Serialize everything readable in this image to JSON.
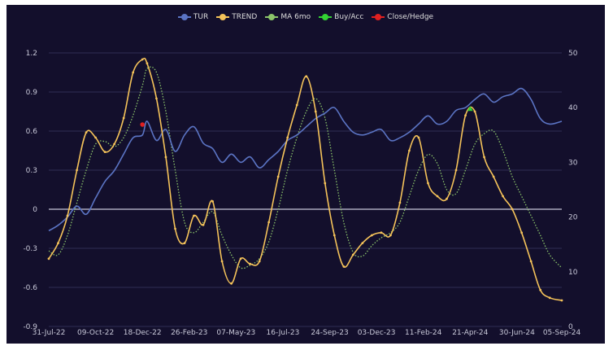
{
  "chart_data": {
    "type": "line",
    "title": "",
    "xlabel": "",
    "ylabel": "",
    "legend_position": "top-center",
    "grid": true,
    "y_left": {
      "range": [
        -0.9,
        1.2
      ],
      "ticks": [
        -0.9,
        -0.6,
        -0.3,
        0,
        0.3,
        0.6,
        0.9,
        1.2
      ],
      "tick_labels": [
        "-0.9",
        "-0.6",
        "-0.3",
        "0",
        "0.3",
        "0.6",
        "0.9",
        "1.2"
      ]
    },
    "y_right": {
      "range": [
        0,
        50
      ],
      "ticks": [
        0,
        10,
        20,
        30,
        40,
        50
      ],
      "tick_labels": [
        "0",
        "10",
        "20",
        "30",
        "40",
        "50"
      ]
    },
    "x_range": [
      "2022-07-31",
      "2024-09-05"
    ],
    "x_tick_labels": [
      {
        "date": "2022-07-31",
        "label": "31-Jul-22"
      },
      {
        "date": "2022-10-09",
        "label": "09-Oct-22"
      },
      {
        "date": "2022-12-18",
        "label": "18-Dec-22"
      },
      {
        "date": "2023-02-26",
        "label": "26-Feb-23"
      },
      {
        "date": "2023-05-07",
        "label": "07-May-23"
      },
      {
        "date": "2023-07-16",
        "label": "16-Jul-23"
      },
      {
        "date": "2023-09-24",
        "label": "24-Sep-23"
      },
      {
        "date": "2023-12-03",
        "label": "03-Dec-23"
      },
      {
        "date": "2024-02-11",
        "label": "11-Feb-24"
      },
      {
        "date": "2024-04-21",
        "label": "21-Apr-24"
      },
      {
        "date": "2024-06-30",
        "label": "30-Jun-24"
      },
      {
        "date": "2024-09-05",
        "label": "05-Sep-24"
      }
    ],
    "series": [
      {
        "name": "TUR",
        "axis": "right",
        "color": "#5b74c4",
        "style": "solid",
        "points": [
          [
            "2022-07-31",
            17.5
          ],
          [
            "2022-08-14",
            18.5
          ],
          [
            "2022-08-28",
            20.0
          ],
          [
            "2022-09-11",
            22.0
          ],
          [
            "2022-09-25",
            20.5
          ],
          [
            "2022-10-09",
            23.5
          ],
          [
            "2022-10-23",
            26.5
          ],
          [
            "2022-11-06",
            28.5
          ],
          [
            "2022-11-20",
            31.5
          ],
          [
            "2022-12-04",
            34.5
          ],
          [
            "2022-12-18",
            35.0
          ],
          [
            "2022-12-25",
            37.5
          ],
          [
            "2023-01-08",
            34.0
          ],
          [
            "2023-01-22",
            36.0
          ],
          [
            "2023-02-05",
            32.0
          ],
          [
            "2023-02-19",
            35.0
          ],
          [
            "2023-03-05",
            36.5
          ],
          [
            "2023-03-19",
            33.5
          ],
          [
            "2023-04-02",
            32.5
          ],
          [
            "2023-04-16",
            30.0
          ],
          [
            "2023-04-30",
            31.5
          ],
          [
            "2023-05-14",
            30.0
          ],
          [
            "2023-05-28",
            31.0
          ],
          [
            "2023-06-11",
            29.0
          ],
          [
            "2023-06-25",
            30.5
          ],
          [
            "2023-07-09",
            32.0
          ],
          [
            "2023-07-23",
            34.0
          ],
          [
            "2023-08-06",
            35.0
          ],
          [
            "2023-08-20",
            36.5
          ],
          [
            "2023-09-03",
            38.0
          ],
          [
            "2023-09-17",
            39.0
          ],
          [
            "2023-10-01",
            40.0
          ],
          [
            "2023-10-15",
            37.5
          ],
          [
            "2023-10-29",
            35.5
          ],
          [
            "2023-11-12",
            35.0
          ],
          [
            "2023-11-26",
            35.5
          ],
          [
            "2023-12-10",
            36.0
          ],
          [
            "2023-12-24",
            34.0
          ],
          [
            "2024-01-07",
            34.5
          ],
          [
            "2024-01-21",
            35.5
          ],
          [
            "2024-02-04",
            37.0
          ],
          [
            "2024-02-18",
            38.5
          ],
          [
            "2024-03-03",
            37.0
          ],
          [
            "2024-03-17",
            37.5
          ],
          [
            "2024-03-31",
            39.5
          ],
          [
            "2024-04-14",
            40.0
          ],
          [
            "2024-04-28",
            41.5
          ],
          [
            "2024-05-12",
            42.5
          ],
          [
            "2024-05-26",
            41.0
          ],
          [
            "2024-06-09",
            42.0
          ],
          [
            "2024-06-23",
            42.5
          ],
          [
            "2024-07-07",
            43.5
          ],
          [
            "2024-07-21",
            41.5
          ],
          [
            "2024-08-04",
            38.0
          ],
          [
            "2024-08-18",
            37.0
          ],
          [
            "2024-09-05",
            37.5
          ]
        ]
      },
      {
        "name": "TREND",
        "axis": "left",
        "color": "#f5c35a",
        "style": "solid-dots",
        "points": [
          [
            "2022-07-31",
            -0.38
          ],
          [
            "2022-08-14",
            -0.26
          ],
          [
            "2022-08-28",
            -0.05
          ],
          [
            "2022-09-11",
            0.3
          ],
          [
            "2022-09-25",
            0.59
          ],
          [
            "2022-10-09",
            0.55
          ],
          [
            "2022-10-23",
            0.44
          ],
          [
            "2022-11-06",
            0.5
          ],
          [
            "2022-11-20",
            0.7
          ],
          [
            "2022-12-04",
            1.05
          ],
          [
            "2022-12-18",
            1.15
          ],
          [
            "2022-12-25",
            1.12
          ],
          [
            "2023-01-08",
            0.85
          ],
          [
            "2023-01-22",
            0.4
          ],
          [
            "2023-02-05",
            -0.15
          ],
          [
            "2023-02-19",
            -0.26
          ],
          [
            "2023-03-05",
            -0.05
          ],
          [
            "2023-03-19",
            -0.12
          ],
          [
            "2023-04-02",
            0.06
          ],
          [
            "2023-04-16",
            -0.4
          ],
          [
            "2023-04-30",
            -0.57
          ],
          [
            "2023-05-14",
            -0.38
          ],
          [
            "2023-05-28",
            -0.42
          ],
          [
            "2023-06-11",
            -0.4
          ],
          [
            "2023-06-25",
            -0.1
          ],
          [
            "2023-07-09",
            0.25
          ],
          [
            "2023-07-23",
            0.55
          ],
          [
            "2023-08-06",
            0.8
          ],
          [
            "2023-08-20",
            1.02
          ],
          [
            "2023-09-03",
            0.75
          ],
          [
            "2023-09-17",
            0.2
          ],
          [
            "2023-10-01",
            -0.2
          ],
          [
            "2023-10-15",
            -0.44
          ],
          [
            "2023-10-29",
            -0.35
          ],
          [
            "2023-11-12",
            -0.26
          ],
          [
            "2023-11-26",
            -0.2
          ],
          [
            "2023-12-10",
            -0.18
          ],
          [
            "2023-12-24",
            -0.2
          ],
          [
            "2024-01-07",
            0.05
          ],
          [
            "2024-01-21",
            0.45
          ],
          [
            "2024-02-04",
            0.55
          ],
          [
            "2024-02-18",
            0.2
          ],
          [
            "2024-03-03",
            0.1
          ],
          [
            "2024-03-17",
            0.08
          ],
          [
            "2024-03-31",
            0.3
          ],
          [
            "2024-04-14",
            0.72
          ],
          [
            "2024-04-28",
            0.75
          ],
          [
            "2024-05-12",
            0.4
          ],
          [
            "2024-05-26",
            0.25
          ],
          [
            "2024-06-09",
            0.1
          ],
          [
            "2024-06-23",
            0.0
          ],
          [
            "2024-07-07",
            -0.18
          ],
          [
            "2024-07-21",
            -0.4
          ],
          [
            "2024-08-04",
            -0.62
          ],
          [
            "2024-08-18",
            -0.68
          ],
          [
            "2024-09-05",
            -0.7
          ]
        ]
      },
      {
        "name": "MA 6mo",
        "axis": "left",
        "color": "#8bc46a",
        "style": "dotted",
        "points": [
          [
            "2022-07-31",
            -0.32
          ],
          [
            "2022-08-14",
            -0.35
          ],
          [
            "2022-08-28",
            -0.2
          ],
          [
            "2022-09-11",
            0.05
          ],
          [
            "2022-09-25",
            0.3
          ],
          [
            "2022-10-09",
            0.5
          ],
          [
            "2022-10-23",
            0.52
          ],
          [
            "2022-11-06",
            0.48
          ],
          [
            "2022-11-20",
            0.55
          ],
          [
            "2022-12-04",
            0.72
          ],
          [
            "2022-12-18",
            0.95
          ],
          [
            "2022-12-25",
            1.08
          ],
          [
            "2023-01-08",
            1.05
          ],
          [
            "2023-01-22",
            0.75
          ],
          [
            "2023-02-05",
            0.3
          ],
          [
            "2023-02-19",
            -0.1
          ],
          [
            "2023-03-05",
            -0.18
          ],
          [
            "2023-03-19",
            -0.1
          ],
          [
            "2023-04-02",
            -0.02
          ],
          [
            "2023-04-16",
            -0.2
          ],
          [
            "2023-04-30",
            -0.35
          ],
          [
            "2023-05-14",
            -0.45
          ],
          [
            "2023-05-28",
            -0.43
          ],
          [
            "2023-06-11",
            -0.38
          ],
          [
            "2023-06-25",
            -0.25
          ],
          [
            "2023-07-09",
            0.0
          ],
          [
            "2023-07-23",
            0.3
          ],
          [
            "2023-08-06",
            0.55
          ],
          [
            "2023-08-20",
            0.75
          ],
          [
            "2023-09-03",
            0.85
          ],
          [
            "2023-09-17",
            0.7
          ],
          [
            "2023-10-01",
            0.3
          ],
          [
            "2023-10-15",
            -0.1
          ],
          [
            "2023-10-29",
            -0.33
          ],
          [
            "2023-11-12",
            -0.36
          ],
          [
            "2023-11-26",
            -0.28
          ],
          [
            "2023-12-10",
            -0.22
          ],
          [
            "2023-12-24",
            -0.18
          ],
          [
            "2024-01-07",
            -0.1
          ],
          [
            "2024-01-21",
            0.1
          ],
          [
            "2024-02-04",
            0.3
          ],
          [
            "2024-02-18",
            0.42
          ],
          [
            "2024-03-03",
            0.35
          ],
          [
            "2024-03-17",
            0.15
          ],
          [
            "2024-03-31",
            0.12
          ],
          [
            "2024-04-14",
            0.3
          ],
          [
            "2024-04-28",
            0.5
          ],
          [
            "2024-05-12",
            0.58
          ],
          [
            "2024-05-26",
            0.6
          ],
          [
            "2024-06-09",
            0.45
          ],
          [
            "2024-06-23",
            0.25
          ],
          [
            "2024-07-07",
            0.1
          ],
          [
            "2024-07-21",
            -0.05
          ],
          [
            "2024-08-04",
            -0.2
          ],
          [
            "2024-08-18",
            -0.35
          ],
          [
            "2024-09-05",
            -0.45
          ]
        ]
      },
      {
        "name": "Buy/Acc",
        "axis": "left",
        "color": "#33d333",
        "style": "marker",
        "points": [
          [
            "2024-04-21",
            0.77
          ]
        ]
      },
      {
        "name": "Close/Hedge",
        "axis": "left",
        "color": "#e02020",
        "style": "marker",
        "points": [
          [
            "2022-12-18",
            0.65
          ]
        ]
      }
    ]
  }
}
